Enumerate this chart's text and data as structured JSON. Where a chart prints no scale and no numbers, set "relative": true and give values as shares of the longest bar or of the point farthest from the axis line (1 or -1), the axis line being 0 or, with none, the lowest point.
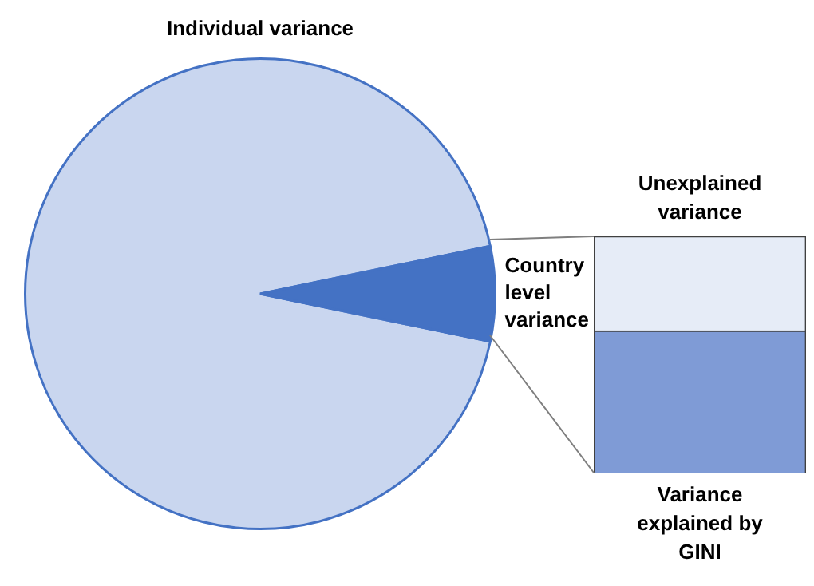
{
  "chart_data": [
    {
      "type": "pie",
      "categories": [
        "Individual variance",
        "Country level variance"
      ],
      "values": [
        93.5,
        6.5
      ],
      "colors": [
        "#c9d6ef",
        "#4472c4"
      ],
      "legend": false
    },
    {
      "type": "bar",
      "stacked": true,
      "relative": true,
      "categories": [
        null
      ],
      "legend": false,
      "series": [
        {
          "name": "Variance explained by GINI",
          "color": "#7f9bd6",
          "values": [
            0.6
          ]
        },
        {
          "name": "Unexplained variance",
          "color": "#e6ecf7",
          "values": [
            0.4
          ]
        }
      ]
    }
  ]
}
